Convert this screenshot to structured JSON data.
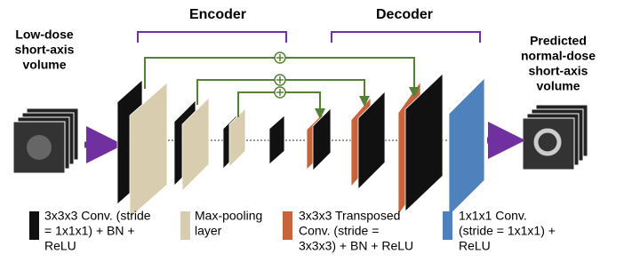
{
  "header": {
    "encoder": "Encoder",
    "decoder": "Decoder"
  },
  "input_label": {
    "lines": [
      "Low-dose",
      "short-axis",
      "volume"
    ]
  },
  "output_label": {
    "lines": [
      "Predicted",
      "normal-dose",
      "short-axis",
      "volume"
    ]
  },
  "legend": [
    {
      "lines": [
        "3x3x3 Conv. (stride",
        "= 1x1x1) + BN +",
        "ReLU"
      ]
    },
    {
      "lines": [
        "Max-pooling",
        "layer"
      ]
    },
    {
      "lines": [
        "3x3x3 Transposed",
        "Conv. (stride =",
        "3x3x3) + BN + ReLU"
      ]
    },
    {
      "lines": [
        "1x1x1 Conv.",
        "(stride = 1x1x1) +",
        "ReLU"
      ]
    }
  ]
}
